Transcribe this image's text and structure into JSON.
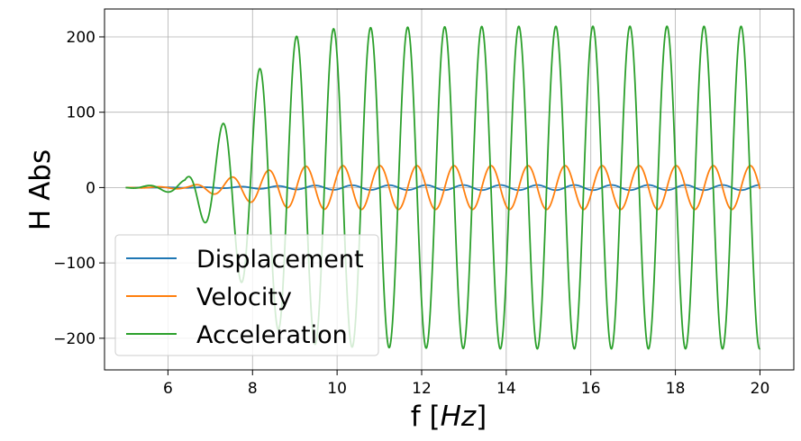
{
  "chart_data": {
    "type": "line",
    "xlabel_main": "f",
    "xlabel_unit": "Hz",
    "ylabel": "H Abs",
    "xlim": [
      4.5,
      20.8
    ],
    "ylim": [
      -242,
      237
    ],
    "grid": true,
    "legend_position": "lower-left",
    "x_ticks": [
      6,
      8,
      10,
      12,
      14,
      16,
      18,
      20
    ],
    "x_tick_labels": [
      "6",
      "8",
      "10",
      "12",
      "14",
      "16",
      "18",
      "20"
    ],
    "y_ticks": [
      -200,
      -100,
      0,
      100,
      200
    ],
    "y_tick_labels": [
      "−200",
      "−100",
      "0",
      "100",
      "200"
    ],
    "x_range": [
      5,
      20
    ],
    "series": [
      {
        "name": "Displacement",
        "color": "#1f77b4",
        "points": [
          [
            5,
            0
          ],
          [
            7,
            0.5
          ],
          [
            8,
            1.5
          ],
          [
            9,
            2.5
          ],
          [
            10,
            3
          ],
          [
            12,
            3.3
          ],
          [
            14,
            3.4
          ],
          [
            16,
            3.4
          ],
          [
            18,
            3.4
          ],
          [
            20,
            3.4
          ]
        ]
      },
      {
        "name": "Velocity",
        "color": "#ff7f0e",
        "points": [
          [
            5,
            0
          ],
          [
            6.5,
            2
          ],
          [
            7.2,
            10
          ],
          [
            8,
            20
          ],
          [
            9,
            28
          ],
          [
            10,
            29
          ],
          [
            12,
            29
          ],
          [
            14,
            29
          ],
          [
            16,
            29
          ],
          [
            18,
            29
          ],
          [
            20,
            29
          ]
        ]
      },
      {
        "name": "Acceleration",
        "color": "#2ca02c",
        "points": [
          [
            5,
            0
          ],
          [
            5.8,
            4
          ],
          [
            6.4,
            10
          ],
          [
            7,
            57
          ],
          [
            7.8,
            132
          ],
          [
            8.7,
            195
          ],
          [
            9.6,
            210
          ],
          [
            10.5,
            212
          ],
          [
            12,
            213
          ],
          [
            14,
            214
          ],
          [
            16,
            214
          ],
          [
            18,
            214
          ],
          [
            20,
            214
          ]
        ]
      }
    ]
  }
}
